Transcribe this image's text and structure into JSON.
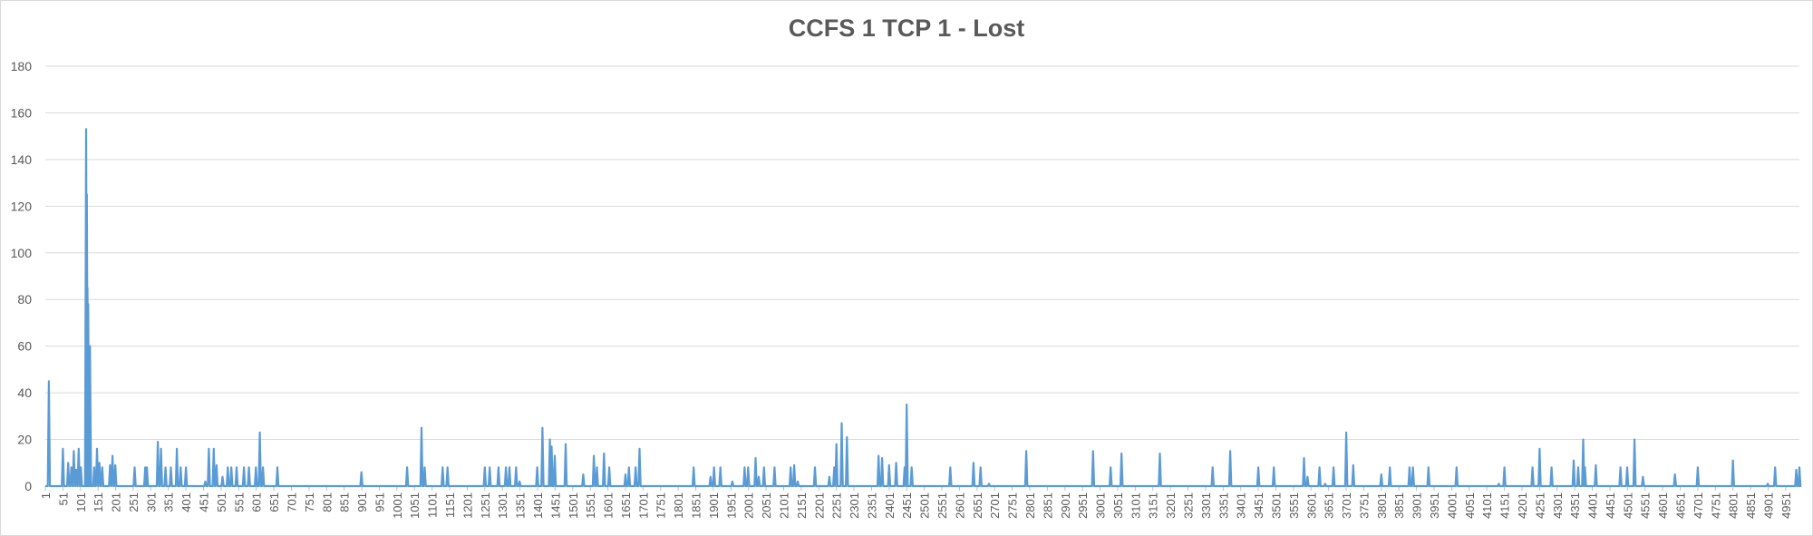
{
  "chart_data": {
    "type": "line",
    "title": "CCFS 1 TCP 1 - Lost",
    "xlabel": "",
    "ylabel": "",
    "x_range": [
      1,
      4990
    ],
    "ylim": [
      0,
      180
    ],
    "y_ticks": [
      0,
      20,
      40,
      60,
      80,
      100,
      120,
      140,
      160,
      180
    ],
    "x_tick_labels": [
      "1",
      "51",
      "101",
      "151",
      "201",
      "251",
      "301",
      "351",
      "401",
      "451",
      "501",
      "551",
      "601",
      "651",
      "701",
      "751",
      "801",
      "851",
      "901",
      "951",
      "1001",
      "1051",
      "1101",
      "1151",
      "1201",
      "1251",
      "1301",
      "1351",
      "1401",
      "1451",
      "1501",
      "1551",
      "1601",
      "1651",
      "1701",
      "1751",
      "1801",
      "1851",
      "1901",
      "1951",
      "2001",
      "2051",
      "2101",
      "2151",
      "2201",
      "2251",
      "2301",
      "2351",
      "2401",
      "2451",
      "2501",
      "2551",
      "2601",
      "2651",
      "2701",
      "2751",
      "2801",
      "2851",
      "2901",
      "2951",
      "3001",
      "3051",
      "3101",
      "3151",
      "3201",
      "3251",
      "3301",
      "3351",
      "3401",
      "3451",
      "3501",
      "3551",
      "3601",
      "3651",
      "3701",
      "3751",
      "3801",
      "3851",
      "3901",
      "3951",
      "4001",
      "4051",
      "4101",
      "4151",
      "4201",
      "4251",
      "4301",
      "4351",
      "4401",
      "4451",
      "4501",
      "4551",
      "4601",
      "4651",
      "4701",
      "4751",
      "4801",
      "4851",
      "4901",
      "4951"
    ],
    "grid": true,
    "legend": "none",
    "series_color": "#5b9bd5",
    "series": [
      {
        "baseline": 0,
        "spikes": [
          [
            11,
            45
          ],
          [
            51,
            16
          ],
          [
            66,
            10
          ],
          [
            75,
            8
          ],
          [
            82,
            15
          ],
          [
            89,
            7
          ],
          [
            96,
            16
          ],
          [
            102,
            8
          ],
          [
            117,
            153
          ],
          [
            119,
            125
          ],
          [
            121,
            85
          ],
          [
            123,
            78
          ],
          [
            128,
            60
          ],
          [
            140,
            8
          ],
          [
            148,
            16
          ],
          [
            155,
            10
          ],
          [
            163,
            8
          ],
          [
            185,
            9
          ],
          [
            192,
            13
          ],
          [
            200,
            9
          ],
          [
            255,
            8
          ],
          [
            285,
            8
          ],
          [
            290,
            8
          ],
          [
            321,
            19
          ],
          [
            330,
            16
          ],
          [
            343,
            8
          ],
          [
            358,
            8
          ],
          [
            375,
            16
          ],
          [
            386,
            8
          ],
          [
            401,
            8
          ],
          [
            456,
            2
          ],
          [
            466,
            16
          ],
          [
            480,
            16
          ],
          [
            488,
            9
          ],
          [
            505,
            4
          ],
          [
            520,
            8
          ],
          [
            530,
            8
          ],
          [
            545,
            8
          ],
          [
            566,
            8
          ],
          [
            580,
            8
          ],
          [
            600,
            8
          ],
          [
            611,
            23
          ],
          [
            620,
            8
          ],
          [
            661,
            8
          ],
          [
            900,
            6
          ],
          [
            1030,
            8
          ],
          [
            1071,
            25
          ],
          [
            1080,
            8
          ],
          [
            1131,
            8
          ],
          [
            1145,
            8
          ],
          [
            1251,
            8
          ],
          [
            1265,
            8
          ],
          [
            1290,
            8
          ],
          [
            1311,
            8
          ],
          [
            1321,
            8
          ],
          [
            1340,
            8
          ],
          [
            1350,
            2
          ],
          [
            1400,
            8
          ],
          [
            1415,
            25
          ],
          [
            1436,
            20
          ],
          [
            1441,
            17
          ],
          [
            1450,
            13
          ],
          [
            1481,
            18
          ],
          [
            1531,
            5
          ],
          [
            1561,
            13
          ],
          [
            1570,
            8
          ],
          [
            1590,
            14
          ],
          [
            1605,
            8
          ],
          [
            1651,
            5
          ],
          [
            1661,
            8
          ],
          [
            1680,
            8
          ],
          [
            1691,
            16
          ],
          [
            1845,
            8
          ],
          [
            1893,
            4
          ],
          [
            1903,
            8
          ],
          [
            1921,
            8
          ],
          [
            1955,
            2
          ],
          [
            1990,
            8
          ],
          [
            2000,
            8
          ],
          [
            2021,
            12
          ],
          [
            2030,
            4
          ],
          [
            2045,
            8
          ],
          [
            2075,
            8
          ],
          [
            2121,
            8
          ],
          [
            2131,
            9
          ],
          [
            2141,
            2
          ],
          [
            2190,
            8
          ],
          [
            2231,
            4
          ],
          [
            2245,
            8
          ],
          [
            2251,
            18
          ],
          [
            2266,
            27
          ],
          [
            2281,
            21
          ],
          [
            2371,
            13
          ],
          [
            2381,
            12
          ],
          [
            2401,
            9
          ],
          [
            2421,
            10
          ],
          [
            2445,
            8
          ],
          [
            2451,
            35
          ],
          [
            2465,
            8
          ],
          [
            2575,
            8
          ],
          [
            2641,
            10
          ],
          [
            2661,
            8
          ],
          [
            2685,
            1
          ],
          [
            2791,
            15
          ],
          [
            2981,
            15
          ],
          [
            3031,
            8
          ],
          [
            3062,
            14
          ],
          [
            3171,
            14
          ],
          [
            3321,
            8
          ],
          [
            3371,
            15
          ],
          [
            3451,
            8
          ],
          [
            3495,
            8
          ],
          [
            3581,
            12
          ],
          [
            3591,
            4
          ],
          [
            3625,
            8
          ],
          [
            3641,
            1
          ],
          [
            3665,
            8
          ],
          [
            3701,
            23
          ],
          [
            3721,
            9
          ],
          [
            3801,
            5
          ],
          [
            3825,
            8
          ],
          [
            3881,
            8
          ],
          [
            3891,
            8
          ],
          [
            3935,
            8
          ],
          [
            4015,
            8
          ],
          [
            4135,
            1
          ],
          [
            4151,
            8
          ],
          [
            4231,
            8
          ],
          [
            4251,
            16
          ],
          [
            4285,
            8
          ],
          [
            4348,
            11
          ],
          [
            4361,
            8
          ],
          [
            4375,
            20
          ],
          [
            4380,
            8
          ],
          [
            4411,
            9
          ],
          [
            4481,
            8
          ],
          [
            4500,
            8
          ],
          [
            4521,
            20
          ],
          [
            4545,
            4
          ],
          [
            4636,
            5
          ],
          [
            4701,
            8
          ],
          [
            4801,
            11
          ],
          [
            4900,
            1
          ],
          [
            4921,
            8
          ],
          [
            4981,
            7
          ],
          [
            4990,
            8
          ]
        ]
      }
    ]
  }
}
